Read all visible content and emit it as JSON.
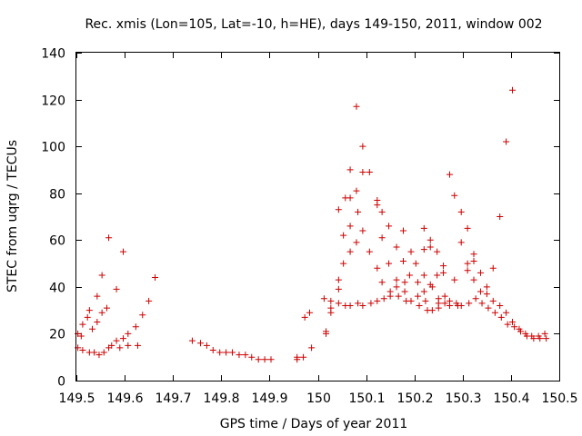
{
  "chart_data": {
    "type": "scatter",
    "title": "Rec. xmis (Lon=105, Lat=-10, h=HE), days 149-150, 2011, window 002",
    "xlabel": "GPS time / Days of year 2011",
    "ylabel": "STEC from uqrg / TECUs",
    "xlim": [
      149.5,
      150.5
    ],
    "ylim": [
      0,
      140
    ],
    "xticks": [
      "149.5",
      "149.6",
      "149.7",
      "149.8",
      "149.9",
      "150",
      "150.1",
      "150.2",
      "150.3",
      "150.4",
      "150.5"
    ],
    "yticks": [
      "0",
      "20",
      "40",
      "60",
      "80",
      "100",
      "120",
      "140"
    ],
    "grid": false,
    "marker": "+",
    "color": "#cc0000",
    "points": [
      [
        149.503,
        20
      ],
      [
        149.503,
        14
      ],
      [
        149.51,
        19
      ],
      [
        149.513,
        24
      ],
      [
        149.513,
        13
      ],
      [
        149.523,
        27
      ],
      [
        149.527,
        30
      ],
      [
        149.527,
        12
      ],
      [
        149.533,
        22
      ],
      [
        149.537,
        12
      ],
      [
        149.543,
        36
      ],
      [
        149.543,
        25
      ],
      [
        149.547,
        11
      ],
      [
        149.553,
        45
      ],
      [
        149.553,
        29
      ],
      [
        149.557,
        12
      ],
      [
        149.563,
        31
      ],
      [
        149.567,
        61
      ],
      [
        149.567,
        14
      ],
      [
        149.573,
        15
      ],
      [
        149.583,
        39
      ],
      [
        149.583,
        17
      ],
      [
        149.59,
        14
      ],
      [
        149.597,
        55
      ],
      [
        149.597,
        18
      ],
      [
        149.607,
        20
      ],
      [
        149.607,
        15
      ],
      [
        149.623,
        23
      ],
      [
        149.627,
        15
      ],
      [
        149.637,
        28
      ],
      [
        149.65,
        34
      ],
      [
        149.663,
        44
      ],
      [
        149.74,
        17
      ],
      [
        149.757,
        16
      ],
      [
        149.77,
        15
      ],
      [
        149.783,
        13
      ],
      [
        149.797,
        12
      ],
      [
        149.81,
        12
      ],
      [
        149.823,
        12
      ],
      [
        149.837,
        11
      ],
      [
        149.85,
        11
      ],
      [
        149.863,
        10
      ],
      [
        149.877,
        9
      ],
      [
        149.89,
        9
      ],
      [
        149.903,
        9
      ],
      [
        149.957,
        10
      ],
      [
        149.957,
        9
      ],
      [
        149.97,
        10
      ],
      [
        149.973,
        27
      ],
      [
        149.983,
        29
      ],
      [
        149.987,
        14
      ],
      [
        150.013,
        35
      ],
      [
        150.017,
        21
      ],
      [
        150.017,
        20
      ],
      [
        150.027,
        34
      ],
      [
        150.027,
        31
      ],
      [
        150.027,
        29
      ],
      [
        150.043,
        73
      ],
      [
        150.043,
        43
      ],
      [
        150.043,
        39
      ],
      [
        150.043,
        33
      ],
      [
        150.053,
        62
      ],
      [
        150.053,
        50
      ],
      [
        150.057,
        78
      ],
      [
        150.057,
        32
      ],
      [
        150.067,
        90
      ],
      [
        150.067,
        78
      ],
      [
        150.067,
        66
      ],
      [
        150.067,
        55
      ],
      [
        150.067,
        32
      ],
      [
        150.08,
        117
      ],
      [
        150.08,
        81
      ],
      [
        150.083,
        72
      ],
      [
        150.08,
        59
      ],
      [
        150.083,
        33
      ],
      [
        150.093,
        100
      ],
      [
        150.093,
        89
      ],
      [
        150.093,
        64
      ],
      [
        150.093,
        32
      ],
      [
        150.107,
        89
      ],
      [
        150.107,
        55
      ],
      [
        150.11,
        33
      ],
      [
        150.123,
        77
      ],
      [
        150.123,
        75
      ],
      [
        150.123,
        48
      ],
      [
        150.123,
        34
      ],
      [
        150.133,
        72
      ],
      [
        150.133,
        61
      ],
      [
        150.133,
        42
      ],
      [
        150.137,
        35
      ],
      [
        150.147,
        66
      ],
      [
        150.147,
        50
      ],
      [
        150.15,
        38
      ],
      [
        150.15,
        36
      ],
      [
        150.163,
        57
      ],
      [
        150.163,
        43
      ],
      [
        150.163,
        40
      ],
      [
        150.167,
        36
      ],
      [
        150.177,
        64
      ],
      [
        150.177,
        51
      ],
      [
        150.18,
        42
      ],
      [
        150.18,
        38
      ],
      [
        150.183,
        34
      ],
      [
        150.19,
        45
      ],
      [
        150.193,
        55
      ],
      [
        150.193,
        34
      ],
      [
        150.203,
        50
      ],
      [
        150.207,
        42
      ],
      [
        150.207,
        36
      ],
      [
        150.21,
        32
      ],
      [
        150.22,
        65
      ],
      [
        150.22,
        56
      ],
      [
        150.22,
        45
      ],
      [
        150.22,
        38
      ],
      [
        150.223,
        34
      ],
      [
        150.227,
        30
      ],
      [
        150.233,
        60
      ],
      [
        150.233,
        57
      ],
      [
        150.233,
        41
      ],
      [
        150.237,
        40
      ],
      [
        150.237,
        30
      ],
      [
        150.247,
        55
      ],
      [
        150.247,
        45
      ],
      [
        150.25,
        35
      ],
      [
        150.25,
        33
      ],
      [
        150.25,
        31
      ],
      [
        150.26,
        49
      ],
      [
        150.26,
        46
      ],
      [
        150.263,
        36
      ],
      [
        150.263,
        33
      ],
      [
        150.273,
        88
      ],
      [
        150.273,
        34
      ],
      [
        150.273,
        32
      ],
      [
        150.283,
        79
      ],
      [
        150.283,
        43
      ],
      [
        150.287,
        33
      ],
      [
        150.29,
        32
      ],
      [
        150.297,
        72
      ],
      [
        150.297,
        59
      ],
      [
        150.297,
        32
      ],
      [
        150.31,
        65
      ],
      [
        150.31,
        50
      ],
      [
        150.31,
        47
      ],
      [
        150.313,
        33
      ],
      [
        150.323,
        54
      ],
      [
        150.323,
        51
      ],
      [
        150.323,
        43
      ],
      [
        150.327,
        35
      ],
      [
        150.337,
        46
      ],
      [
        150.337,
        38
      ],
      [
        150.34,
        33
      ],
      [
        150.35,
        40
      ],
      [
        150.35,
        37
      ],
      [
        150.353,
        31
      ],
      [
        150.363,
        48
      ],
      [
        150.363,
        34
      ],
      [
        150.367,
        29
      ],
      [
        150.377,
        70
      ],
      [
        150.377,
        32
      ],
      [
        150.38,
        27
      ],
      [
        150.39,
        102
      ],
      [
        150.39,
        29
      ],
      [
        150.393,
        24
      ],
      [
        150.403,
        124
      ],
      [
        150.403,
        25
      ],
      [
        150.407,
        23
      ],
      [
        150.417,
        22
      ],
      [
        150.42,
        21
      ],
      [
        150.43,
        20
      ],
      [
        150.433,
        19
      ],
      [
        150.443,
        19
      ],
      [
        150.447,
        18
      ],
      [
        150.457,
        19
      ],
      [
        150.46,
        18
      ],
      [
        150.47,
        20
      ],
      [
        150.473,
        18
      ]
    ]
  }
}
